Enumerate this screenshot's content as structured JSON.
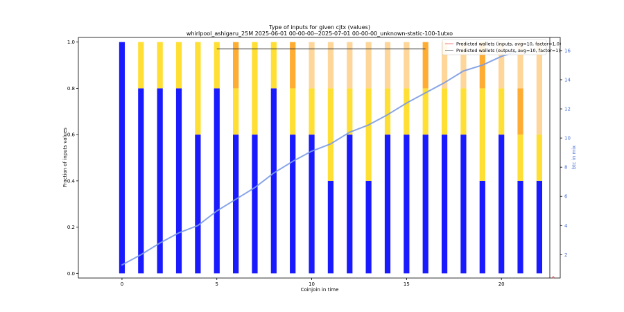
{
  "chart_data": {
    "type": "bar",
    "title": "Type of inputs for given cjtx (values)",
    "subtitle": "whirlpool_ashigaru_25M 2025-06-01 00-00-00--2025-07-01 00-00-00_unknown-static-100-1utxo",
    "xlabel": "Coinjoin in time",
    "ylabel": "Fraction of inputs values",
    "y2label": "btc in mix",
    "xlim": [
      -2.3,
      23.1
    ],
    "ylim": [
      -0.02,
      1.02
    ],
    "y2lim": [
      0.4,
      16.9
    ],
    "xticks": [
      0,
      5,
      10,
      15,
      20
    ],
    "yticks": [
      0.0,
      0.2,
      0.4,
      0.6,
      0.8,
      1.0
    ],
    "y2ticks": [
      2,
      4,
      6,
      8,
      10,
      12,
      14,
      16
    ],
    "stack_colors": [
      "#1a1aff",
      "#ffdf33",
      "#ffac33",
      "#ffd699"
    ],
    "stacks": [
      [
        1.0,
        0,
        0,
        0
      ],
      [
        0.8,
        0.2,
        0,
        0
      ],
      [
        0.8,
        0.2,
        0,
        0
      ],
      [
        0.8,
        0.2,
        0,
        0
      ],
      [
        0.6,
        0.4,
        0,
        0
      ],
      [
        0.8,
        0.2,
        0,
        0
      ],
      [
        0.6,
        0.2,
        0.2,
        0
      ],
      [
        0.6,
        0.4,
        0,
        0
      ],
      [
        0.8,
        0.2,
        0,
        0
      ],
      [
        0.6,
        0.2,
        0.2,
        0
      ],
      [
        0.6,
        0.2,
        0,
        0.2
      ],
      [
        0.4,
        0.4,
        0,
        0.2
      ],
      [
        0.6,
        0.2,
        0,
        0.2
      ],
      [
        0.4,
        0.4,
        0,
        0.2
      ],
      [
        0.6,
        0.2,
        0,
        0.2
      ],
      [
        0.6,
        0.2,
        0,
        0.2
      ],
      [
        0.6,
        0.2,
        0.2,
        0
      ],
      [
        0.6,
        0.2,
        0,
        0.2
      ],
      [
        0.6,
        0.2,
        0,
        0.2
      ],
      [
        0.4,
        0.4,
        0.2,
        0
      ],
      [
        0.6,
        0.2,
        0,
        0.2
      ],
      [
        0.4,
        0.2,
        0.2,
        0.2
      ],
      [
        0.4,
        0.2,
        0,
        0.4
      ]
    ],
    "btc_line": {
      "color": "#7b9be6",
      "x": [
        0,
        1,
        2,
        3,
        4,
        5,
        6,
        7,
        8,
        9,
        10,
        11,
        12,
        13,
        14,
        15,
        16,
        17,
        18,
        19,
        20,
        21
      ],
      "y": [
        1.3,
        2.0,
        2.8,
        3.5,
        4.0,
        5.0,
        5.8,
        6.6,
        7.6,
        8.4,
        9.1,
        9.6,
        10.4,
        10.9,
        11.6,
        12.4,
        13.1,
        13.8,
        14.6,
        15.0,
        15.6,
        16.0
      ]
    },
    "hline": {
      "x": [
        5,
        16
      ],
      "y": 0.97,
      "color": "#333333"
    },
    "legend": {
      "placement": "top-right",
      "entries": [
        {
          "label": "Predicted wallets (inputs, avg=10, factor=1.0)",
          "color": "#f08080"
        },
        {
          "label": "Predicted wallets (outputs, avg=10, factor=1)",
          "color": "#888888"
        }
      ]
    }
  }
}
